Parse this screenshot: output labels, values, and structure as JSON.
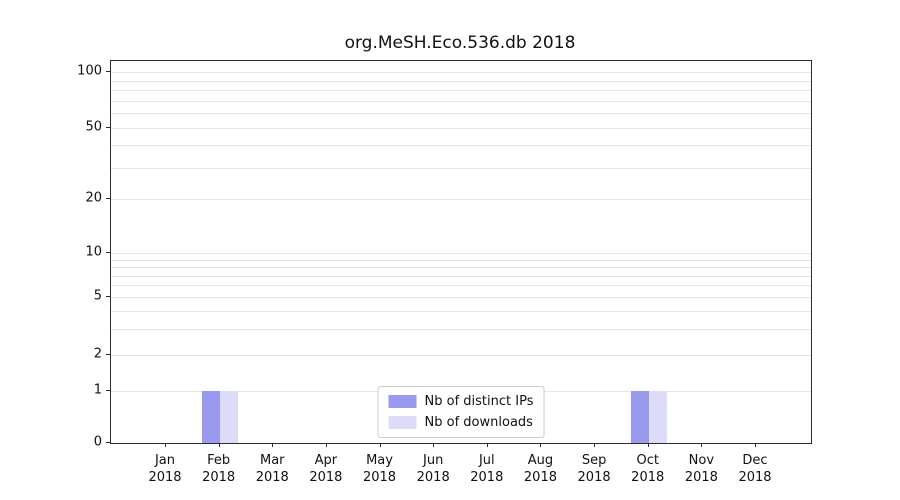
{
  "figure": {
    "title": "org.MeSH.Eco.536.db 2018"
  },
  "chart_data": {
    "type": "bar",
    "title": "org.MeSH.Eco.536.db 2018",
    "xlabel": "",
    "ylabel": "",
    "scale": "symlog",
    "grid": "horizontal",
    "legend_position": "lower center",
    "categories": [
      "Jan 2018",
      "Feb 2018",
      "Mar 2018",
      "Apr 2018",
      "May 2018",
      "Jun 2018",
      "Jul 2018",
      "Aug 2018",
      "Sep 2018",
      "Oct 2018",
      "Nov 2018",
      "Dec 2018"
    ],
    "series": [
      {
        "name": "Nb of distinct IPs",
        "color": "#9999ee",
        "values": [
          0,
          1,
          0,
          0,
          0,
          0,
          0,
          0,
          0,
          1,
          0,
          0
        ]
      },
      {
        "name": "Nb of downloads",
        "color": "#dcdcf8",
        "values": [
          0,
          1,
          0,
          0,
          0,
          0,
          0,
          0,
          0,
          1,
          0,
          0
        ]
      }
    ],
    "yticks": [
      0,
      1,
      2,
      5,
      10,
      20,
      50,
      100
    ],
    "ylim": [
      0,
      110
    ],
    "colors": {
      "gridline": "#e6e6e6",
      "axis": "#2b2b2b"
    }
  }
}
